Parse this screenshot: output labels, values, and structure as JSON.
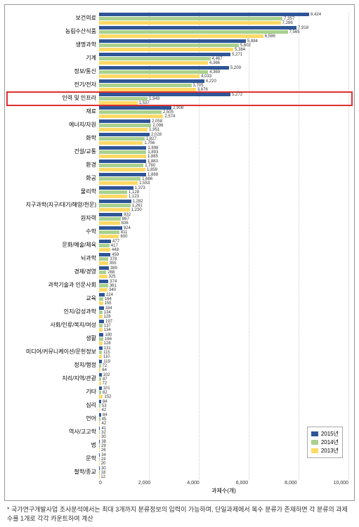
{
  "chart": {
    "type": "bar",
    "orientation": "horizontal",
    "x_title": "과제수(개)",
    "x_ticks": [
      0,
      2000,
      4000,
      6000,
      8000,
      10000
    ],
    "xlim": [
      0,
      10000
    ],
    "label_fontsize": 8,
    "tick_fontsize": 7,
    "value_fontsize": 6,
    "background_color": "#ffffff",
    "grid_color": "#cccccc",
    "colors": {
      "2015": "#2f5597",
      "2014": "#a9d18e",
      "2013": "#ffd966"
    },
    "legend": {
      "items": [
        {
          "label": "2015년",
          "color": "#2f5597"
        },
        {
          "label": "2014년",
          "color": "#a9d18e"
        },
        {
          "label": "2013년",
          "color": "#ffd966"
        }
      ]
    },
    "highlight_index": 6,
    "highlight_color": "#e03030",
    "categories": [
      {
        "label": "보건의료",
        "v2015": 8424,
        "v2014": 7357,
        "v2013": 7286
      },
      {
        "label": "농림수산식품",
        "v2015": 7918,
        "v2014": 7565,
        "v2013": 6586
      },
      {
        "label": "생명과학",
        "v2015": 5884,
        "v2014": 5602,
        "v2013": 5384
      },
      {
        "label": "기계",
        "v2015": 5271,
        "v2014": 4467,
        "v2013": 4366
      },
      {
        "label": "정보/통신",
        "v2015": 5209,
        "v2014": 4369,
        "v2013": 4033
      },
      {
        "label": "전기/전자",
        "v2015": 4220,
        "v2014": 3705,
        "v2013": 3878
      },
      {
        "label": "인력 및 인프라",
        "v2015": 5272,
        "v2014": 1948,
        "v2013": 1537
      },
      {
        "label": "재료",
        "v2015": 2908,
        "v2014": 2505,
        "v2013": 2574
      },
      {
        "label": "에너지/자원",
        "v2015": 2058,
        "v2014": 2096,
        "v2013": 1951
      },
      {
        "label": "화학",
        "v2015": 2028,
        "v2014": 1827,
        "v2013": 1756
      },
      {
        "label": "건설/교통",
        "v2015": 1898,
        "v2014": 1893,
        "v2013": 1885
      },
      {
        "label": "환경",
        "v2015": 1883,
        "v2014": 1780,
        "v2013": 1859
      },
      {
        "label": "화공",
        "v2015": 1888,
        "v2014": 1666,
        "v2013": 1553
      },
      {
        "label": "물리학",
        "v2015": 1373,
        "v2014": 1128,
        "v2013": 1123
      },
      {
        "label": "지구과학(지구/대기/해양/천문)",
        "v2015": 1282,
        "v2014": 1261,
        "v2013": 1230
      },
      {
        "label": "원자력",
        "v2015": 932,
        "v2014": 867,
        "v2013": 836
      },
      {
        "label": "수학",
        "v2015": 924,
        "v2014": 811,
        "v2013": 800
      },
      {
        "label": "문화/예술/체육",
        "v2015": 477,
        "v2014": 417,
        "v2013": 448
      },
      {
        "label": "뇌과학",
        "v2015": 459,
        "v2014": 378,
        "v2013": 355
      },
      {
        "label": "경제/경영",
        "v2015": 389,
        "v2014": 288,
        "v2013": 325
      },
      {
        "label": "과학기술과 인문사회",
        "v2015": 374,
        "v2014": 361,
        "v2013": 340
      },
      {
        "label": "교육",
        "v2015": 224,
        "v2014": 164,
        "v2013": 155
      },
      {
        "label": "인지/감성과학",
        "v2015": 184,
        "v2014": 134,
        "v2013": 128
      },
      {
        "label": "사회/인류/복지/여성",
        "v2015": 197,
        "v2014": 137,
        "v2013": 134
      },
      {
        "label": "생활",
        "v2015": 180,
        "v2014": 166,
        "v2013": 128
      },
      {
        "label": "미디어/커뮤니케이션/문헌정보",
        "v2015": 131,
        "v2014": 115,
        "v2013": 110
      },
      {
        "label": "정치/행정",
        "v2015": 119,
        "v2014": 72,
        "v2013": 64
      },
      {
        "label": "지리/지역/관광",
        "v2015": 102,
        "v2014": 87,
        "v2013": 72
      },
      {
        "label": "기타",
        "v2015": 101,
        "v2014": 82,
        "v2013": 152
      },
      {
        "label": "심리",
        "v2015": 84,
        "v2014": 53,
        "v2013": 42
      },
      {
        "label": "언어",
        "v2015": 84,
        "v2014": 45,
        "v2013": 42
      },
      {
        "label": "역사/고고학",
        "v2015": 41,
        "v2014": 32,
        "v2013": 30
      },
      {
        "label": "법",
        "v2015": 38,
        "v2014": 29,
        "v2013": 26
      },
      {
        "label": "문학",
        "v2015": 34,
        "v2014": 19,
        "v2013": 20
      },
      {
        "label": "철학/종교",
        "v2015": 30,
        "v2014": 18,
        "v2013": 12
      }
    ]
  },
  "footnote": "* 국가연구개발사업 조사분석에서는 최대 3개까지 분류정보의 입력이 가능하며, 단일과제에서 복수 분류가 존재하면 각 분류의 과제수를 1개로 각각 카운트하여 계산"
}
